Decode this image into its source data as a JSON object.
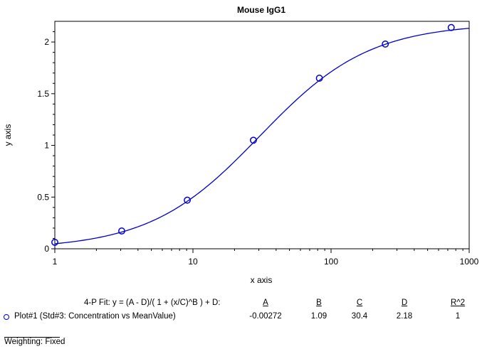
{
  "chart_data": {
    "type": "scatter",
    "title": "Mouse IgG1",
    "xlabel": "x axis",
    "ylabel": "y axis",
    "x_scale": "log",
    "xlim": [
      1,
      1000
    ],
    "ylim": [
      0,
      2.2
    ],
    "x_ticks": [
      "1",
      "10",
      "100",
      "1000"
    ],
    "y_ticks": [
      "0",
      "0.5",
      "1",
      "1.5",
      "2"
    ],
    "x_tick_values": [
      1,
      10,
      100,
      1000
    ],
    "y_tick_values": [
      0,
      0.5,
      1,
      1.5,
      2
    ],
    "grid": false,
    "series": [
      {
        "name": "Plot#1 (Std#3: Concentration vs MeanValue)",
        "color": "#0000cc",
        "marker": "open-circle",
        "x": [
          1,
          3.05,
          9.1,
          27.4,
          82.3,
          247,
          741
        ],
        "y": [
          0.063,
          0.172,
          0.47,
          1.05,
          1.65,
          1.98,
          2.14
        ]
      }
    ],
    "fit": {
      "model": "4-P Fit: y = (A - D)/( 1 + (x/C)^B ) + D:",
      "A": -0.00272,
      "B": 1.09,
      "C": 30.4,
      "D": 2.18,
      "color": "#0000cc"
    }
  },
  "fit_table": {
    "model_label": "4-P Fit: y = (A - D)/( 1 + (x/C)^B ) + D:",
    "headers": [
      "A",
      "B",
      "C",
      "D",
      "R^2"
    ],
    "row_label": "Plot#1 (Std#3: Concentration vs MeanValue)",
    "values": [
      "-0.00272",
      "1.09",
      "30.4",
      "2.18",
      "1"
    ]
  },
  "weighting": "Weighting: Fixed"
}
